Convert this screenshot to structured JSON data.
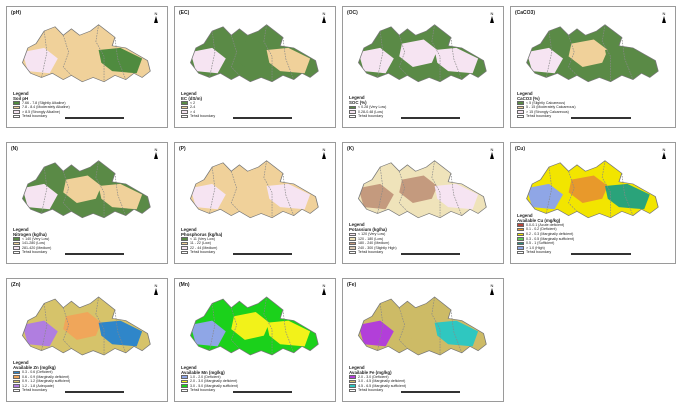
{
  "panels": [
    {
      "title": "(pH)",
      "north": "N",
      "fills": [
        "#f0d19a",
        "#f0d19a",
        "#4f8b3f",
        "#f6e4f2"
      ],
      "legend": {
        "heading": "Legend",
        "subheading": "Soil pH",
        "items": [
          {
            "color": "#4f8b3f",
            "label": "7.66 - 7.8 (Slightly Alkaline)"
          },
          {
            "color": "#f0d19a",
            "label": "7.8 - 8.4 (Moderately Alkaline)"
          },
          {
            "color": "#f6e4f2",
            "label": "> 8.5 (Strongly Alkaline)"
          },
          {
            "color": "#ffffff",
            "label": "Tehsil boundary"
          }
        ]
      }
    },
    {
      "title": "(EC)",
      "north": "N",
      "fills": [
        "#5a8a46",
        "#5a8a46",
        "#f0d19a",
        "#f6e4f2"
      ],
      "legend": {
        "heading": "Legend",
        "subheading": "EC (dS/m)",
        "items": [
          {
            "color": "#5a8a46",
            "label": "< 2"
          },
          {
            "color": "#f0d19a",
            "label": "2-4"
          },
          {
            "color": "#f6e4f2",
            "label": "> 4"
          },
          {
            "color": "#ffffff",
            "label": "Tehsil boundary"
          }
        ]
      }
    },
    {
      "title": "(OC)",
      "north": "N",
      "fills": [
        "#5a8a46",
        "#f6e4f2",
        "#f6e4f2",
        "#f6e4f2"
      ],
      "legend": {
        "heading": "Legend",
        "subheading": "SOC (%)",
        "items": [
          {
            "color": "#5a8a46",
            "label": "< 0.28 (Very Low)"
          },
          {
            "color": "#f6e4f2",
            "label": "0.28-0.48 (Low)"
          },
          {
            "color": "#ffffff",
            "label": "Tehsil boundary"
          }
        ]
      }
    },
    {
      "title": "(CaCO3)",
      "north": "N",
      "fills": [
        "#5a8a46",
        "#f0d19a",
        "#5a8a46",
        "#f6e4f2"
      ],
      "legend": {
        "heading": "Legend",
        "subheading": "CaCO3 (%)",
        "items": [
          {
            "color": "#5a8a46",
            "label": "< 5 (Slightly Calcareous)"
          },
          {
            "color": "#f0d19a",
            "label": "5 - 15 (Moderately Calcareous)"
          },
          {
            "color": "#f6e4f2",
            "label": "> 15 (Strongly Calcareous)"
          },
          {
            "color": "#ffffff",
            "label": "Tehsil boundary"
          }
        ]
      }
    },
    {
      "title": "(N)",
      "north": "N",
      "fills": [
        "#5a8a46",
        "#f0d19a",
        "#f0d19a",
        "#f6e4f2"
      ],
      "legend": {
        "heading": "Legend",
        "subheading": "Nitrogen (kg/ha)",
        "items": [
          {
            "color": "#5a8a46",
            "label": "< 140 (Very Low)"
          },
          {
            "color": "#f0d19a",
            "label": "141-280 (Low)"
          },
          {
            "color": "#f6e4f2",
            "label": "281-420 (Medium)"
          },
          {
            "color": "#ffffff",
            "label": "Tehsil boundary"
          }
        ]
      }
    },
    {
      "title": "(P)",
      "north": "N",
      "fills": [
        "#f0d19a",
        "#f0d19a",
        "#f6e4f2",
        "#f6e4f2"
      ],
      "legend": {
        "heading": "Legend",
        "subheading": "Phosphorus (kg/ha)",
        "items": [
          {
            "color": "#5a8a46",
            "label": "< 11 (Very Low)"
          },
          {
            "color": "#f0d19a",
            "label": "11 - 22 (Low)"
          },
          {
            "color": "#f6e4f2",
            "label": "22 - 44 (Medium)"
          },
          {
            "color": "#ffffff",
            "label": "Tehsil boundary"
          }
        ]
      }
    },
    {
      "title": "(K)",
      "north": "N",
      "fills": [
        "#efe3ba",
        "#c49a7e",
        "#f6e4f2",
        "#c49a7e"
      ],
      "legend": {
        "heading": "Legend",
        "subheading": "Potassium (kg/ha)",
        "items": [
          {
            "color": "#f6e4f2",
            "label": "< 120 (Very Low)"
          },
          {
            "color": "#efe3ba",
            "label": "120 - 180 (Low)"
          },
          {
            "color": "#c49a7e",
            "label": "180 - 240 (Medium)"
          },
          {
            "color": "#d8c6b0",
            "label": "240 - 300 (Slightly High)"
          },
          {
            "color": "#ffffff",
            "label": "Tehsil boundary"
          }
        ]
      }
    },
    {
      "title": "(Cu)",
      "north": "N",
      "fills": [
        "#f2e500",
        "#e8992b",
        "#2aa37a",
        "#8fa6e6"
      ],
      "legend": {
        "heading": "Legend",
        "subheading": "Available Cu (mg/kg)",
        "items": [
          {
            "color": "#b7473b",
            "label": "0.0-0.1 (Acute deficient)"
          },
          {
            "color": "#e8992b",
            "label": "0.1 - 0.2 (Deficient)"
          },
          {
            "color": "#f2e500",
            "label": "0.2 - 0.3 (Marginally deficient)"
          },
          {
            "color": "#5fc95a",
            "label": "0.3 - 0.5 (Marginally sufficient)"
          },
          {
            "color": "#2a8c7e",
            "label": "0.5 - 1 (Sufficient)"
          },
          {
            "color": "#8fa6e6",
            "label": "> 1.0 (High)"
          },
          {
            "color": "#ffffff",
            "label": "Tehsil boundary"
          }
        ]
      }
    },
    {
      "title": "(Zn)",
      "north": "N",
      "fills": [
        "#d6c36a",
        "#f0a65a",
        "#2f86c9",
        "#b07ee0"
      ],
      "legend": {
        "heading": "Legend",
        "subheading": "Available Zn (mg/kg)",
        "items": [
          {
            "color": "#2f86c9",
            "label": "0.3 - 0.6 (Deficient)"
          },
          {
            "color": "#f0a65a",
            "label": "0.6 - 0.9 (Marginally deficient)"
          },
          {
            "color": "#d6c36a",
            "label": "0.9 - 1.2 (Marginally sufficient)"
          },
          {
            "color": "#b07ee0",
            "label": "1.2 - 1.8 (Adequate)"
          },
          {
            "color": "#ffffff",
            "label": "Tehsil boundary"
          }
        ]
      }
    },
    {
      "title": "(Mn)",
      "north": "N",
      "fills": [
        "#1bd11b",
        "#f2f21a",
        "#f2f21a",
        "#8fa6e6"
      ],
      "legend": {
        "heading": "Legend",
        "subheading": "Available Mn (mg/kg)",
        "items": [
          {
            "color": "#8fa6e6",
            "label": "1.0 - 2.0 (Deficient)"
          },
          {
            "color": "#f2f21a",
            "label": "2.0 - 3.0 (Marginally deficient)"
          },
          {
            "color": "#1bd11b",
            "label": "3.0 - 5.0 (Marginally sufficient)"
          },
          {
            "color": "#ffffff",
            "label": "Tehsil boundary"
          }
        ]
      }
    },
    {
      "title": "(Fe)",
      "north": "N",
      "fills": [
        "#cdbb66",
        "#cdbb66",
        "#2fc7c0",
        "#b23fd9"
      ],
      "legend": {
        "heading": "Legend",
        "subheading": "Available Fe (mg/kg)",
        "items": [
          {
            "color": "#b23fd9",
            "label": "2.0 - 3.0 (Deficient)"
          },
          {
            "color": "#cdbb66",
            "label": "3.0 - 4.5 (Marginally deficient)"
          },
          {
            "color": "#2fc7c0",
            "label": "4.5 - 6.5 (Marginally sufficient)"
          },
          {
            "color": "#ffffff",
            "label": "Tehsil boundary"
          }
        ]
      }
    }
  ]
}
